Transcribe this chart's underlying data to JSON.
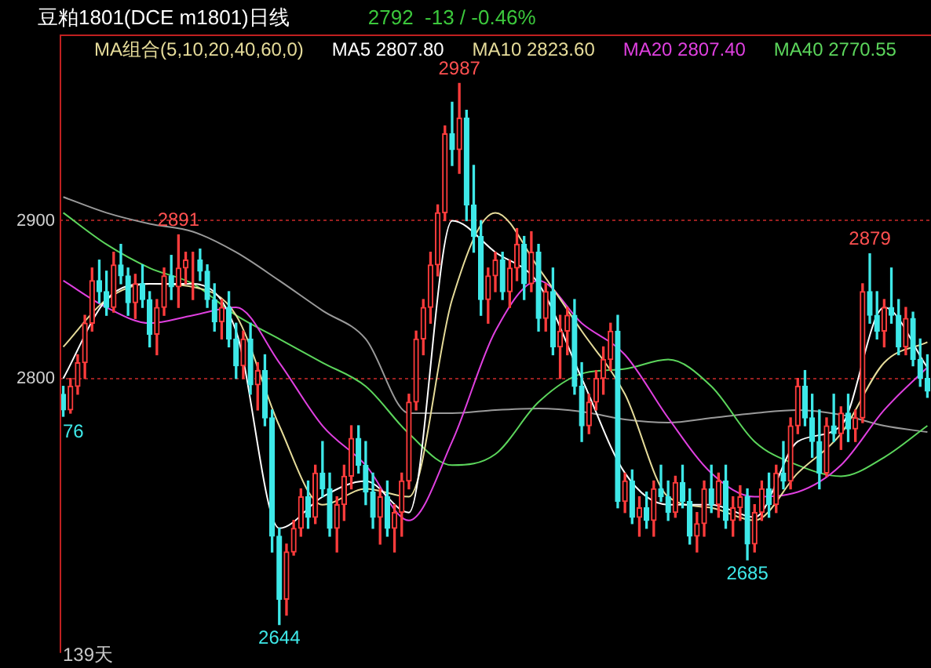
{
  "chart_data": {
    "type": "candlestick",
    "title": "豆粕1801(DCE m1801)日线",
    "subtitle": "2792  -13 / -0.46%",
    "legend_title": "MA组合(5,10,20,40,60,0)",
    "legend": "top",
    "grid": "y",
    "ylim": [
      2626,
      3018
    ],
    "yticks": [
      2800,
      2900
    ],
    "categories": [
      null,
      null,
      null,
      null,
      null,
      null,
      null,
      null,
      null,
      null,
      null,
      null,
      null,
      null,
      null,
      null,
      null,
      null,
      null,
      null,
      null,
      null,
      null,
      null,
      null,
      null,
      null,
      null,
      null,
      null,
      null,
      null,
      null,
      null,
      null,
      null,
      null,
      null,
      null,
      null,
      null,
      null,
      null,
      null,
      null,
      null,
      null,
      null,
      null,
      null,
      null,
      null,
      null,
      null,
      null,
      null,
      null,
      null,
      null,
      null,
      null,
      null,
      null,
      null,
      null,
      null,
      null,
      null,
      null,
      null,
      null,
      null,
      null,
      null,
      null,
      null,
      null,
      null,
      null,
      null,
      null,
      null,
      null,
      null,
      null,
      null,
      null,
      null,
      null,
      null,
      null,
      null,
      null,
      null,
      null,
      null,
      null,
      null,
      null,
      null,
      null,
      null,
      null,
      null,
      null,
      null,
      null,
      null,
      null,
      null,
      null,
      null,
      null,
      null,
      null,
      null,
      null,
      null,
      null,
      null,
      null
    ],
    "ohlc": [
      [
        2790,
        2795,
        2776,
        2780
      ],
      [
        2780,
        2800,
        2778,
        2795
      ],
      [
        2795,
        2815,
        2790,
        2810
      ],
      [
        2810,
        2840,
        2800,
        2835
      ],
      [
        2835,
        2870,
        2830,
        2862
      ],
      [
        2862,
        2875,
        2848,
        2855
      ],
      [
        2855,
        2868,
        2840,
        2845
      ],
      [
        2845,
        2880,
        2842,
        2872
      ],
      [
        2872,
        2885,
        2860,
        2865
      ],
      [
        2865,
        2870,
        2840,
        2848
      ],
      [
        2848,
        2866,
        2838,
        2860
      ],
      [
        2860,
        2872,
        2845,
        2850
      ],
      [
        2850,
        2855,
        2820,
        2828
      ],
      [
        2828,
        2850,
        2815,
        2845
      ],
      [
        2845,
        2870,
        2840,
        2865
      ],
      [
        2865,
        2878,
        2850,
        2858
      ],
      [
        2858,
        2891,
        2845,
        2870
      ],
      [
        2870,
        2880,
        2860,
        2875
      ],
      [
        2875,
        2880,
        2850,
        2875
      ],
      [
        2875,
        2882,
        2862,
        2868
      ],
      [
        2868,
        2872,
        2845,
        2850
      ],
      [
        2850,
        2860,
        2830,
        2836
      ],
      [
        2836,
        2850,
        2825,
        2845
      ],
      [
        2845,
        2855,
        2820,
        2825
      ],
      [
        2825,
        2835,
        2800,
        2808
      ],
      [
        2808,
        2830,
        2800,
        2825
      ],
      [
        2825,
        2835,
        2790,
        2796
      ],
      [
        2796,
        2810,
        2780,
        2805
      ],
      [
        2805,
        2815,
        2770,
        2775
      ],
      [
        2775,
        2780,
        2690,
        2700
      ],
      [
        2700,
        2705,
        2644,
        2660
      ],
      [
        2660,
        2695,
        2650,
        2690
      ],
      [
        2690,
        2710,
        2688,
        2705
      ],
      [
        2705,
        2730,
        2700,
        2725
      ],
      [
        2725,
        2735,
        2705,
        2712
      ],
      [
        2712,
        2745,
        2708,
        2740
      ],
      [
        2740,
        2760,
        2725,
        2730
      ],
      [
        2730,
        2740,
        2700,
        2705
      ],
      [
        2705,
        2725,
        2690,
        2720
      ],
      [
        2720,
        2745,
        2710,
        2738
      ],
      [
        2738,
        2770,
        2730,
        2762
      ],
      [
        2762,
        2770,
        2740,
        2745
      ],
      [
        2745,
        2760,
        2720,
        2728
      ],
      [
        2728,
        2740,
        2705,
        2712
      ],
      [
        2712,
        2730,
        2695,
        2725
      ],
      [
        2725,
        2735,
        2700,
        2705
      ],
      [
        2705,
        2720,
        2690,
        2715
      ],
      [
        2715,
        2740,
        2700,
        2735
      ],
      [
        2735,
        2790,
        2730,
        2785
      ],
      [
        2785,
        2830,
        2780,
        2825
      ],
      [
        2825,
        2850,
        2815,
        2845
      ],
      [
        2845,
        2880,
        2835,
        2872
      ],
      [
        2872,
        2910,
        2865,
        2905
      ],
      [
        2905,
        2960,
        2900,
        2955
      ],
      [
        2955,
        2975,
        2935,
        2945
      ],
      [
        2945,
        2987,
        2930,
        2965
      ],
      [
        2965,
        2970,
        2900,
        2910
      ],
      [
        2910,
        2935,
        2880,
        2890
      ],
      [
        2890,
        2900,
        2840,
        2850
      ],
      [
        2850,
        2870,
        2835,
        2865
      ],
      [
        2865,
        2880,
        2855,
        2875
      ],
      [
        2875,
        2880,
        2850,
        2855
      ],
      [
        2855,
        2875,
        2845,
        2870
      ],
      [
        2870,
        2895,
        2862,
        2885
      ],
      [
        2885,
        2890,
        2850,
        2860
      ],
      [
        2860,
        2893,
        2855,
        2880
      ],
      [
        2880,
        2885,
        2830,
        2838
      ],
      [
        2838,
        2860,
        2830,
        2855
      ],
      [
        2855,
        2870,
        2815,
        2820
      ],
      [
        2820,
        2840,
        2800,
        2830
      ],
      [
        2830,
        2845,
        2815,
        2840
      ],
      [
        2840,
        2850,
        2790,
        2795
      ],
      [
        2795,
        2810,
        2760,
        2770
      ],
      [
        2770,
        2790,
        2765,
        2785
      ],
      [
        2785,
        2805,
        2780,
        2800
      ],
      [
        2800,
        2820,
        2790,
        2812
      ],
      [
        2812,
        2835,
        2805,
        2830
      ],
      [
        2830,
        2840,
        2718,
        2722
      ],
      [
        2722,
        2740,
        2715,
        2735
      ],
      [
        2735,
        2742,
        2708,
        2712
      ],
      [
        2712,
        2725,
        2700,
        2718
      ],
      [
        2718,
        2728,
        2705,
        2710
      ],
      [
        2710,
        2735,
        2700,
        2730
      ],
      [
        2730,
        2745,
        2722,
        2725
      ],
      [
        2725,
        2735,
        2710,
        2715
      ],
      [
        2715,
        2738,
        2712,
        2734
      ],
      [
        2734,
        2745,
        2718,
        2722
      ],
      [
        2722,
        2730,
        2695,
        2700
      ],
      [
        2700,
        2715,
        2690,
        2708
      ],
      [
        2708,
        2735,
        2700,
        2730
      ],
      [
        2730,
        2745,
        2715,
        2720
      ],
      [
        2720,
        2740,
        2712,
        2735
      ],
      [
        2735,
        2745,
        2705,
        2710
      ],
      [
        2710,
        2725,
        2700,
        2718
      ],
      [
        2718,
        2732,
        2710,
        2725
      ],
      [
        2725,
        2730,
        2685,
        2695
      ],
      [
        2695,
        2720,
        2690,
        2715
      ],
      [
        2715,
        2735,
        2710,
        2730
      ],
      [
        2730,
        2740,
        2712,
        2720
      ],
      [
        2720,
        2745,
        2715,
        2740
      ],
      [
        2740,
        2760,
        2730,
        2735
      ],
      [
        2735,
        2775,
        2730,
        2770
      ],
      [
        2770,
        2800,
        2765,
        2795
      ],
      [
        2795,
        2805,
        2770,
        2775
      ],
      [
        2775,
        2790,
        2750,
        2760
      ],
      [
        2760,
        2780,
        2730,
        2740
      ],
      [
        2740,
        2775,
        2738,
        2770
      ],
      [
        2770,
        2790,
        2760,
        2765
      ],
      [
        2765,
        2782,
        2755,
        2778
      ],
      [
        2778,
        2790,
        2760,
        2768
      ],
      [
        2768,
        2780,
        2760,
        2775
      ],
      [
        2775,
        2860,
        2772,
        2855
      ],
      [
        2855,
        2879,
        2835,
        2840
      ],
      [
        2840,
        2855,
        2825,
        2830
      ],
      [
        2830,
        2850,
        2820,
        2845
      ],
      [
        2845,
        2870,
        2835,
        2840
      ],
      [
        2840,
        2850,
        2815,
        2820
      ],
      [
        2820,
        2845,
        2815,
        2838
      ],
      [
        2838,
        2842,
        2808,
        2812
      ],
      [
        2812,
        2825,
        2795,
        2800
      ],
      [
        2800,
        2815,
        2788,
        2792
      ]
    ],
    "series": [
      {
        "type": "line",
        "name": "MA5 2807.80",
        "color": "#ffffff",
        "values": [
          2800,
          null,
          null,
          null,
          null,
          null,
          2850,
          null,
          null,
          null,
          null,
          null,
          2860,
          null,
          null,
          null,
          null,
          null,
          2860,
          null,
          null,
          null,
          null,
          null,
          2830,
          null,
          null,
          null,
          null,
          null,
          2705,
          null,
          null,
          null,
          null,
          null,
          2725,
          null,
          null,
          null,
          null,
          null,
          2735,
          null,
          null,
          null,
          null,
          null,
          2715,
          null,
          null,
          null,
          null,
          null,
          2900,
          null,
          null,
          null,
          null,
          null,
          2880,
          null,
          null,
          null,
          null,
          null,
          2860,
          null,
          null,
          null,
          null,
          null,
          2800,
          null,
          null,
          null,
          null,
          null,
          2740,
          null,
          null,
          null,
          null,
          null,
          2720,
          null,
          null,
          null,
          null,
          null,
          2720,
          null,
          null,
          null,
          null,
          null,
          2712,
          null,
          null,
          null,
          null,
          null,
          2760,
          null,
          null,
          null,
          null,
          null,
          2770,
          null,
          null,
          null,
          null,
          null,
          2845,
          null,
          null,
          null,
          null,
          null,
          2807
        ]
      },
      {
        "type": "line",
        "name": "MA10 2823.60",
        "color": "#e6dc9a",
        "values": [
          2820,
          null,
          null,
          null,
          null,
          null,
          2850,
          null,
          null,
          null,
          null,
          null,
          2860,
          null,
          null,
          null,
          null,
          null,
          2858,
          null,
          null,
          null,
          null,
          null,
          2840,
          null,
          null,
          null,
          null,
          null,
          2770,
          null,
          null,
          null,
          null,
          null,
          2720,
          null,
          null,
          null,
          null,
          null,
          2730,
          null,
          null,
          null,
          null,
          null,
          2725,
          null,
          null,
          null,
          null,
          null,
          2850,
          null,
          null,
          null,
          null,
          null,
          2905,
          null,
          null,
          null,
          null,
          null,
          2870,
          null,
          null,
          null,
          null,
          null,
          2830,
          null,
          null,
          null,
          null,
          null,
          2790,
          null,
          null,
          null,
          null,
          null,
          2725,
          null,
          null,
          null,
          null,
          null,
          2718,
          null,
          null,
          null,
          null,
          null,
          2710,
          null,
          null,
          null,
          null,
          null,
          2740,
          null,
          null,
          null,
          null,
          null,
          2765,
          null,
          null,
          null,
          null,
          null,
          2810,
          null,
          null,
          null,
          null,
          null,
          2823
        ]
      },
      {
        "type": "line",
        "name": "MA20 2807.40",
        "color": "#e040e0",
        "values": [
          2862,
          null,
          null,
          null,
          null,
          null,
          2845,
          null,
          null,
          null,
          null,
          null,
          2835,
          null,
          null,
          null,
          null,
          null,
          2840,
          null,
          null,
          null,
          null,
          null,
          2845,
          null,
          null,
          null,
          null,
          null,
          2810,
          null,
          null,
          null,
          null,
          null,
          2770,
          null,
          null,
          null,
          null,
          null,
          2745,
          null,
          null,
          null,
          null,
          null,
          2710,
          null,
          null,
          null,
          null,
          null,
          2760,
          null,
          null,
          null,
          null,
          null,
          2830,
          null,
          null,
          null,
          null,
          null,
          2862,
          null,
          null,
          null,
          null,
          null,
          2835,
          null,
          null,
          null,
          null,
          null,
          2815,
          null,
          null,
          null,
          null,
          null,
          2775,
          null,
          null,
          null,
          null,
          null,
          2740,
          null,
          null,
          null,
          null,
          null,
          2725,
          null,
          null,
          null,
          null,
          null,
          2728,
          null,
          null,
          null,
          null,
          null,
          2745,
          null,
          null,
          null,
          null,
          null,
          2780,
          null,
          null,
          null,
          null,
          null,
          2807
        ]
      },
      {
        "type": "line",
        "name": "MA40 2770.55",
        "color": "#5cd65c",
        "values": [
          2905,
          null,
          null,
          null,
          null,
          null,
          2885,
          null,
          null,
          null,
          null,
          null,
          2870,
          null,
          null,
          null,
          null,
          null,
          2860,
          null,
          null,
          null,
          null,
          null,
          2840,
          null,
          null,
          null,
          null,
          null,
          2825,
          null,
          null,
          null,
          null,
          null,
          2810,
          null,
          null,
          null,
          null,
          null,
          2795,
          null,
          null,
          null,
          null,
          null,
          2765,
          null,
          null,
          null,
          null,
          null,
          2745,
          null,
          null,
          null,
          null,
          null,
          2752,
          null,
          null,
          null,
          null,
          null,
          2785,
          null,
          null,
          null,
          null,
          null,
          2803,
          null,
          null,
          null,
          null,
          null,
          2806,
          null,
          null,
          null,
          null,
          null,
          2812,
          null,
          null,
          null,
          null,
          null,
          2795,
          null,
          null,
          null,
          null,
          null,
          2760,
          null,
          null,
          null,
          null,
          null,
          2745,
          null,
          null,
          null,
          null,
          null,
          2738,
          null,
          null,
          null,
          null,
          null,
          2750,
          null,
          null,
          null,
          null,
          null,
          2770
        ]
      },
      {
        "type": "line",
        "color": "#9a9a9a",
        "values": [
          2915,
          null,
          null,
          null,
          null,
          null,
          2905,
          null,
          null,
          null,
          null,
          null,
          2898,
          null,
          null,
          null,
          null,
          null,
          2893,
          null,
          null,
          null,
          null,
          null,
          2880,
          null,
          null,
          null,
          null,
          null,
          2862,
          null,
          null,
          null,
          null,
          null,
          2843,
          null,
          null,
          null,
          null,
          null,
          2825,
          null,
          null,
          null,
          null,
          null,
          2778,
          null,
          null,
          null,
          null,
          null,
          2778,
          null,
          null,
          null,
          null,
          null,
          2780,
          null,
          null,
          null,
          null,
          null,
          2781,
          null,
          null,
          null,
          null,
          null,
          2779,
          null,
          null,
          null,
          null,
          null,
          2774,
          null,
          null,
          null,
          null,
          null,
          2772,
          null,
          null,
          null,
          null,
          null,
          2775,
          null,
          null,
          null,
          null,
          null,
          2778,
          null,
          null,
          null,
          null,
          null,
          2780,
          null,
          null,
          null,
          null,
          null,
          2777,
          null,
          null,
          null,
          null,
          null,
          2770,
          null,
          null,
          null,
          null,
          null,
          2766
        ]
      }
    ],
    "annotations": [
      {
        "text": "2891",
        "y": 2891
      },
      {
        "text": "2987",
        "y": 2987
      },
      {
        "text": "2879",
        "y": 2879
      },
      {
        "text": "2685",
        "y": 2685
      },
      {
        "text": "2644",
        "y": 2644
      },
      "76",
      "139天"
    ]
  }
}
